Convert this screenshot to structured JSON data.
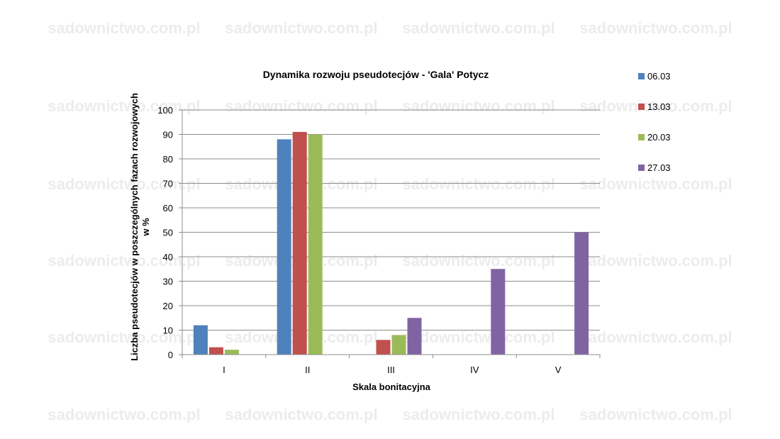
{
  "watermark_text": "sadownictwo.com.pl",
  "chart_data": {
    "type": "bar",
    "title": "Dynamika rozwoju pseudotecjów - 'Gala' Potycz",
    "xlabel": "Skala bonitacyjna",
    "ylabel": "Liczba pseudotecjów w poszczególnych fazach rozwojowych w %",
    "ylim": [
      0,
      100
    ],
    "yticks": [
      0,
      10,
      20,
      30,
      40,
      50,
      60,
      70,
      80,
      90,
      100
    ],
    "grid": "horizontal",
    "legend": "right",
    "categories": [
      "I",
      "II",
      "III",
      "IV",
      "V"
    ],
    "series": [
      {
        "name": "06.03",
        "color": "#4F81BD",
        "values": [
          12,
          88,
          0,
          0,
          0
        ]
      },
      {
        "name": "13.03",
        "color": "#C0504D",
        "values": [
          3,
          91,
          6,
          0,
          0
        ]
      },
      {
        "name": "20.03",
        "color": "#9BBB59",
        "values": [
          2,
          90,
          8,
          0,
          0
        ]
      },
      {
        "name": "27.03",
        "color": "#8064A2",
        "values": [
          0,
          0,
          15,
          35,
          50
        ]
      }
    ]
  }
}
